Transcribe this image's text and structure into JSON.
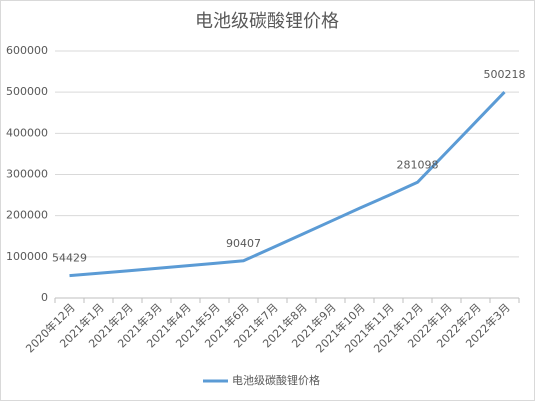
{
  "chart_data": {
    "type": "line",
    "title": "电池级碳酸锂价格",
    "categories": [
      "2020年12月",
      "2021年1月",
      "2021年2月",
      "2021年3月",
      "2021年4月",
      "2021年5月",
      "2021年6月",
      "2021年7月",
      "2021年8月",
      "2021年9月",
      "2021年10月",
      "2021年11月",
      "2021年12月",
      "2022年1月",
      "2022年2月",
      "2022年3月"
    ],
    "series": [
      {
        "name": "电池级碳酸锂价格",
        "color": "#5b9bd5",
        "values": [
          54429,
          60000,
          66000,
          72000,
          78000,
          84000,
          90407,
          122000,
          154000,
          186000,
          218000,
          249000,
          281098,
          354000,
          427000,
          500218
        ],
        "value_labels": [
          "54429",
          null,
          null,
          null,
          null,
          null,
          "90407",
          null,
          null,
          null,
          null,
          null,
          "281098",
          null,
          null,
          "500218"
        ]
      }
    ],
    "ylim": [
      0,
      600000
    ],
    "yticks": [
      0,
      100000,
      200000,
      300000,
      400000,
      500000,
      600000
    ],
    "grid": true,
    "legend": "bottom"
  }
}
